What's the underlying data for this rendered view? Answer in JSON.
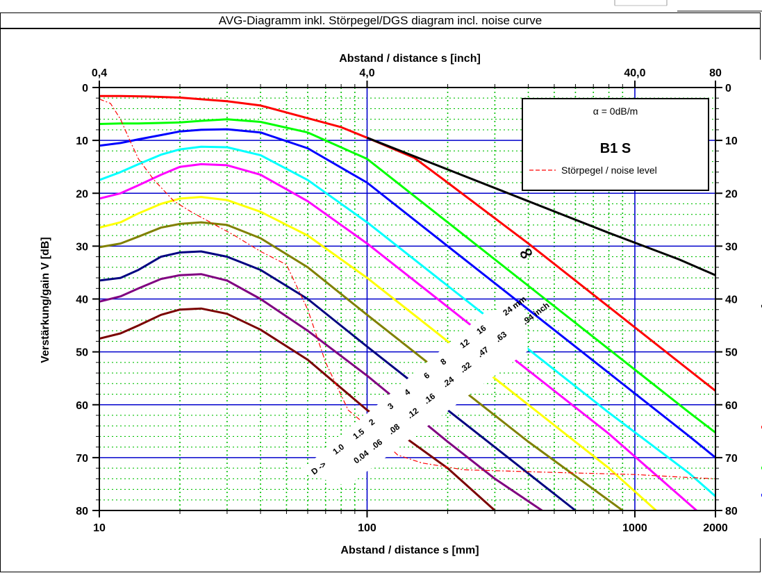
{
  "title": "AVG-Diagramm inkl. Störpegel/DGS diagram incl. noise curve",
  "chart_data": {
    "type": "line",
    "x_scale": "log",
    "xlim": [
      10,
      2000
    ],
    "ylim": [
      0,
      80
    ],
    "y_inverted": true,
    "xlabel": "Abstand / distance s [mm]",
    "xlabel_top": "Abstand / distance s [inch]",
    "ylabel": "Verstärkung/gain V [dB]",
    "x_ticks": [
      10,
      100,
      1000,
      2000
    ],
    "x_ticks_top": [
      {
        "label": "0,4",
        "mm": 10
      },
      {
        "label": "4,0",
        "mm": 100
      },
      {
        "label": "40,0",
        "mm": 1000
      },
      {
        "label": "80",
        "mm": 2000
      }
    ],
    "y_ticks": [
      0,
      10,
      20,
      30,
      40,
      50,
      60,
      70,
      80
    ],
    "grid": true,
    "legend": {
      "attenuation": "α = 0dB/m",
      "probe": "B1 S",
      "noise_label": "Störpegel / noise level",
      "placement": "top-right"
    },
    "infinity_symbol": "∞",
    "d_prefix": "D -> ",
    "d_mm": [
      "1.0",
      "1.5",
      "2",
      "3",
      "4",
      "6",
      "8",
      "12",
      "16",
      "24 mm"
    ],
    "d_inch": [
      "0.04",
      ".06",
      ".08",
      ".12",
      ".16",
      ".24",
      ".32",
      ".47",
      ".63",
      ".94 inch"
    ],
    "series": [
      {
        "name": "1.0",
        "color": "#7a0000",
        "points": [
          [
            10,
            47.5
          ],
          [
            12,
            46.5
          ],
          [
            14,
            45
          ],
          [
            17,
            43
          ],
          [
            20,
            42
          ],
          [
            24,
            41.8
          ],
          [
            30,
            42.8
          ],
          [
            40,
            45.8
          ],
          [
            60,
            51.5
          ],
          [
            100,
            61
          ],
          [
            200,
            72
          ],
          [
            300,
            80
          ]
        ]
      },
      {
        "name": "1.5",
        "color": "#800080",
        "points": [
          [
            10,
            40.5
          ],
          [
            12,
            39.5
          ],
          [
            14,
            38
          ],
          [
            17,
            36.2
          ],
          [
            20,
            35.5
          ],
          [
            24,
            35.3
          ],
          [
            30,
            36.5
          ],
          [
            40,
            40
          ],
          [
            60,
            46
          ],
          [
            100,
            54.5
          ],
          [
            200,
            67
          ],
          [
            300,
            74
          ],
          [
            450,
            80
          ]
        ]
      },
      {
        "name": "2",
        "color": "#000080",
        "points": [
          [
            10,
            36.5
          ],
          [
            12,
            36
          ],
          [
            14,
            34.5
          ],
          [
            17,
            32
          ],
          [
            20,
            31.2
          ],
          [
            24,
            31
          ],
          [
            30,
            32
          ],
          [
            40,
            34.5
          ],
          [
            60,
            40
          ],
          [
            100,
            49
          ],
          [
            200,
            61
          ],
          [
            400,
            73
          ],
          [
            600,
            80
          ]
        ]
      },
      {
        "name": "3",
        "color": "#808000",
        "points": [
          [
            10,
            30.2
          ],
          [
            12,
            29.5
          ],
          [
            14,
            28.2
          ],
          [
            17,
            26.5
          ],
          [
            20,
            25.8
          ],
          [
            24,
            25.5
          ],
          [
            30,
            26
          ],
          [
            40,
            28.5
          ],
          [
            60,
            34
          ],
          [
            100,
            43
          ],
          [
            200,
            55
          ],
          [
            400,
            67
          ],
          [
            900,
            80
          ]
        ]
      },
      {
        "name": "4",
        "color": "#ffff00",
        "points": [
          [
            10,
            26.5
          ],
          [
            12,
            25.5
          ],
          [
            14,
            23.8
          ],
          [
            17,
            22
          ],
          [
            20,
            21
          ],
          [
            24,
            20.7
          ],
          [
            30,
            21.3
          ],
          [
            40,
            23.5
          ],
          [
            60,
            28
          ],
          [
            100,
            36
          ],
          [
            200,
            48
          ],
          [
            400,
            60
          ],
          [
            800,
            72
          ],
          [
            1200,
            80
          ]
        ]
      },
      {
        "name": "6",
        "color": "#ff00ff",
        "points": [
          [
            10,
            21
          ],
          [
            12,
            20
          ],
          [
            14,
            18.5
          ],
          [
            17,
            16.5
          ],
          [
            20,
            15
          ],
          [
            24,
            14.5
          ],
          [
            30,
            14.7
          ],
          [
            40,
            16.5
          ],
          [
            60,
            21.5
          ],
          [
            100,
            29.5
          ],
          [
            200,
            41.5
          ],
          [
            400,
            53.5
          ],
          [
            800,
            65.5
          ],
          [
            1700,
            80
          ]
        ]
      },
      {
        "name": "8",
        "color": "#00ffff",
        "points": [
          [
            10,
            17.5
          ],
          [
            12,
            16
          ],
          [
            14,
            14.5
          ],
          [
            17,
            12.7
          ],
          [
            20,
            11.7
          ],
          [
            24,
            11.2
          ],
          [
            30,
            11.3
          ],
          [
            40,
            12.8
          ],
          [
            60,
            17.5
          ],
          [
            100,
            25.5
          ],
          [
            200,
            37.5
          ],
          [
            400,
            49.5
          ],
          [
            800,
            61.5
          ],
          [
            1600,
            73
          ],
          [
            2300,
            80
          ]
        ]
      },
      {
        "name": "12",
        "color": "#0000ff",
        "points": [
          [
            10,
            11
          ],
          [
            12,
            10.5
          ],
          [
            14,
            9.8
          ],
          [
            17,
            9
          ],
          [
            20,
            8.3
          ],
          [
            24,
            8
          ],
          [
            30,
            7.9
          ],
          [
            40,
            8.5
          ],
          [
            60,
            11.5
          ],
          [
            100,
            18
          ],
          [
            200,
            30
          ],
          [
            400,
            42
          ],
          [
            800,
            54
          ],
          [
            1600,
            66
          ],
          [
            3500,
            80
          ]
        ]
      },
      {
        "name": "16",
        "color": "#00ff00",
        "points": [
          [
            10,
            6.9
          ],
          [
            12,
            6.8
          ],
          [
            14,
            6.8
          ],
          [
            17,
            6.7
          ],
          [
            20,
            6.6
          ],
          [
            24,
            6.3
          ],
          [
            30,
            6
          ],
          [
            40,
            6.5
          ],
          [
            60,
            8.5
          ],
          [
            100,
            13.5
          ],
          [
            200,
            25.5
          ],
          [
            400,
            37.5
          ],
          [
            800,
            49.5
          ],
          [
            1600,
            61.5
          ],
          [
            4800,
            80
          ]
        ]
      },
      {
        "name": "24",
        "color": "#ff0000",
        "points": [
          [
            10,
            1.6
          ],
          [
            12,
            1.6
          ],
          [
            15,
            1.7
          ],
          [
            20,
            1.9
          ],
          [
            30,
            2.6
          ],
          [
            40,
            3.4
          ],
          [
            60,
            5.8
          ],
          [
            80,
            7.5
          ],
          [
            100,
            9.5
          ],
          [
            150,
            13.3
          ],
          [
            200,
            18
          ],
          [
            400,
            29.5
          ],
          [
            800,
            41.5
          ],
          [
            1600,
            53.5
          ],
          [
            3200,
            65.5
          ],
          [
            7000,
            80
          ]
        ]
      },
      {
        "name": "∞",
        "color": "#000000",
        "points": [
          [
            100,
            9.5
          ],
          [
            200,
            15.5
          ],
          [
            400,
            21.5
          ],
          [
            800,
            27.5
          ],
          [
            1460,
            32.5
          ],
          [
            2000,
            35.5
          ],
          [
            5000,
            49
          ]
        ]
      },
      {
        "name": "Störpegel / noise level",
        "color": "#ff0000",
        "dashed": true,
        "points": [
          [
            10,
            2.2
          ],
          [
            11,
            3
          ],
          [
            12,
            6
          ],
          [
            13,
            10
          ],
          [
            14,
            13.5
          ],
          [
            16,
            17.5
          ],
          [
            19,
            21.5
          ],
          [
            22,
            23.5
          ],
          [
            26,
            25.5
          ],
          [
            32,
            28
          ],
          [
            40,
            31
          ],
          [
            50,
            33.5
          ],
          [
            60,
            42
          ],
          [
            70,
            52
          ],
          [
            85,
            61
          ],
          [
            100,
            64
          ],
          [
            130,
            69.5
          ],
          [
            160,
            71
          ],
          [
            230,
            72.3
          ],
          [
            500,
            72.8
          ],
          [
            1000,
            73.2
          ],
          [
            1500,
            73.7
          ],
          [
            2000,
            74
          ],
          [
            5000,
            74
          ]
        ]
      }
    ]
  }
}
